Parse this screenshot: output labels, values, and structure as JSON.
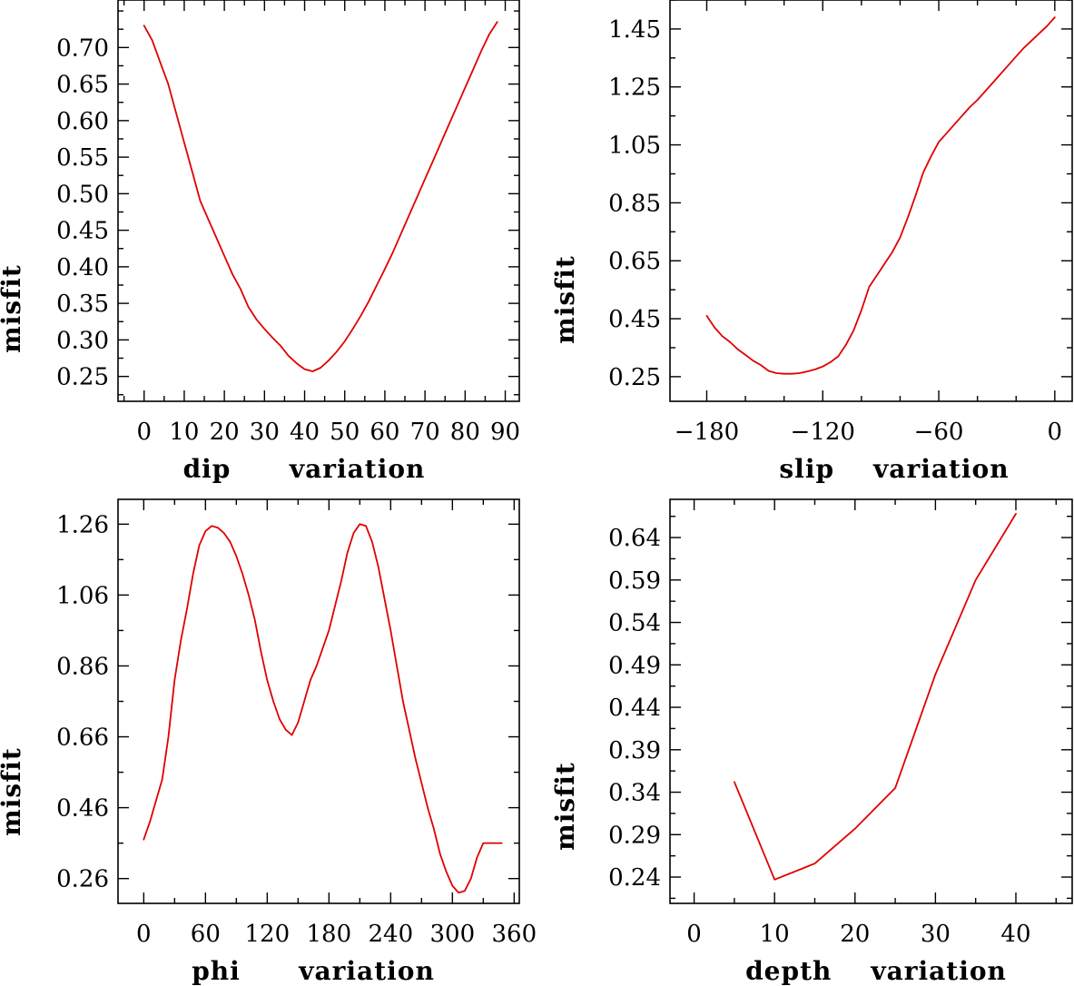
{
  "chart_data": [
    {
      "id": "dip",
      "type": "line",
      "title": "",
      "xlabel": "dip      variation",
      "ylabel": "misfit",
      "xlim": [
        -6.5,
        93.5
      ],
      "ylim": [
        0.216,
        0.765
      ],
      "xticks": [
        0,
        10,
        20,
        30,
        40,
        50,
        60,
        70,
        80,
        90
      ],
      "xtick_labels": [
        "0",
        "10",
        "20",
        "30",
        "40",
        "50",
        "60",
        "70",
        "80",
        "90"
      ],
      "xminor": 5,
      "yticks": [
        0.25,
        0.3,
        0.35,
        0.4,
        0.45,
        0.5,
        0.55,
        0.6,
        0.65,
        0.7
      ],
      "ytick_labels": [
        "0.25",
        "0.30",
        "0.35",
        "0.40",
        "0.45",
        "0.50",
        "0.55",
        "0.60",
        "0.65",
        "0.70"
      ],
      "yminor": 0.025,
      "grid": false,
      "series": [
        {
          "name": "misfit",
          "color": "#e00000",
          "x": [
            0,
            2,
            4,
            6,
            8,
            10,
            12,
            14,
            16,
            18,
            20,
            22,
            24,
            26,
            28,
            30,
            32,
            34,
            36,
            38,
            40,
            42,
            44,
            46,
            48,
            50,
            52,
            54,
            56,
            58,
            60,
            62,
            64,
            66,
            68,
            70,
            72,
            74,
            76,
            78,
            80,
            82,
            84,
            86,
            88
          ],
          "y": [
            0.73,
            0.71,
            0.68,
            0.65,
            0.61,
            0.57,
            0.53,
            0.49,
            0.465,
            0.44,
            0.415,
            0.39,
            0.37,
            0.345,
            0.328,
            0.315,
            0.303,
            0.292,
            0.278,
            0.268,
            0.26,
            0.257,
            0.262,
            0.272,
            0.284,
            0.298,
            0.315,
            0.333,
            0.353,
            0.375,
            0.397,
            0.42,
            0.445,
            0.47,
            0.495,
            0.52,
            0.545,
            0.57,
            0.595,
            0.62,
            0.645,
            0.67,
            0.695,
            0.718,
            0.735
          ]
        }
      ]
    },
    {
      "id": "slip",
      "type": "line",
      "title": "",
      "xlabel": "slip    variation",
      "ylabel": "misfit",
      "xlim": [
        -199,
        9
      ],
      "ylim": [
        0.165,
        1.55
      ],
      "xticks": [
        -180,
        -120,
        -60,
        0
      ],
      "xtick_labels": [
        "−180",
        "−120",
        "−60",
        "0"
      ],
      "xminor": 20,
      "yticks": [
        0.25,
        0.45,
        0.65,
        0.85,
        1.05,
        1.25,
        1.45
      ],
      "ytick_labels": [
        "0.25",
        "0.45",
        "0.65",
        "0.85",
        "1.05",
        "1.25",
        "1.45"
      ],
      "yminor": 0.1,
      "grid": false,
      "series": [
        {
          "name": "misfit",
          "color": "#e00000",
          "x": [
            -180,
            -176,
            -172,
            -168,
            -164,
            -160,
            -156,
            -152,
            -148,
            -144,
            -140,
            -136,
            -132,
            -128,
            -124,
            -120,
            -116,
            -112,
            -108,
            -104,
            -100,
            -96,
            -92,
            -88,
            -84,
            -80,
            -76,
            -72,
            -68,
            -64,
            -60,
            -56,
            -52,
            -48,
            -44,
            -40,
            -36,
            -32,
            -28,
            -24,
            -20,
            -16,
            -12,
            -8,
            -4,
            0
          ],
          "y": [
            0.46,
            0.42,
            0.39,
            0.37,
            0.345,
            0.325,
            0.305,
            0.29,
            0.27,
            0.262,
            0.26,
            0.26,
            0.262,
            0.268,
            0.275,
            0.285,
            0.3,
            0.32,
            0.36,
            0.41,
            0.48,
            0.56,
            0.6,
            0.64,
            0.68,
            0.73,
            0.8,
            0.875,
            0.955,
            1.01,
            1.06,
            1.09,
            1.12,
            1.15,
            1.18,
            1.205,
            1.235,
            1.265,
            1.295,
            1.325,
            1.355,
            1.385,
            1.41,
            1.435,
            1.46,
            1.49
          ]
        }
      ]
    },
    {
      "id": "phi",
      "type": "line",
      "title": "",
      "xlabel": "phi      variation",
      "ylabel": "misfit",
      "xlim": [
        -25,
        365
      ],
      "ylim": [
        0.19,
        1.33
      ],
      "xticks": [
        0,
        60,
        120,
        180,
        240,
        300,
        360
      ],
      "xtick_labels": [
        "0",
        "60",
        "120",
        "180",
        "240",
        "300",
        "360"
      ],
      "xminor": 30,
      "yticks": [
        0.26,
        0.46,
        0.66,
        0.86,
        1.06,
        1.26
      ],
      "ytick_labels": [
        "0.26",
        "0.46",
        "0.66",
        "0.86",
        "1.06",
        "1.26"
      ],
      "yminor": 0.1,
      "grid": false,
      "series": [
        {
          "name": "misfit",
          "color": "#e00000",
          "x": [
            0,
            6,
            12,
            18,
            24,
            30,
            36,
            42,
            48,
            54,
            60,
            66,
            72,
            78,
            84,
            90,
            96,
            102,
            108,
            114,
            120,
            126,
            132,
            138,
            144,
            150,
            156,
            162,
            168,
            174,
            180,
            186,
            192,
            198,
            204,
            210,
            216,
            222,
            228,
            234,
            240,
            246,
            252,
            258,
            264,
            270,
            276,
            282,
            288,
            294,
            300,
            306,
            312,
            318,
            324,
            330,
            336,
            342,
            348
          ],
          "y": [
            0.37,
            0.42,
            0.48,
            0.54,
            0.66,
            0.82,
            0.93,
            1.02,
            1.12,
            1.2,
            1.24,
            1.255,
            1.25,
            1.235,
            1.21,
            1.17,
            1.12,
            1.06,
            0.99,
            0.9,
            0.82,
            0.76,
            0.71,
            0.68,
            0.665,
            0.7,
            0.76,
            0.82,
            0.86,
            0.91,
            0.96,
            1.03,
            1.1,
            1.18,
            1.235,
            1.26,
            1.255,
            1.21,
            1.14,
            1.05,
            0.96,
            0.86,
            0.76,
            0.68,
            0.6,
            0.53,
            0.46,
            0.4,
            0.33,
            0.28,
            0.24,
            0.22,
            0.225,
            0.26,
            0.32,
            0.36,
            0.36,
            0.36,
            0.36
          ]
        }
      ]
    },
    {
      "id": "depth",
      "type": "line",
      "title": "",
      "xlabel": "depth    variation",
      "ylabel": "misfit",
      "xlim": [
        -3,
        47
      ],
      "ylim": [
        0.209,
        0.685
      ],
      "xticks": [
        0,
        10,
        20,
        30,
        40
      ],
      "xtick_labels": [
        "0",
        "10",
        "20",
        "30",
        "40"
      ],
      "xminor": 5,
      "yticks": [
        0.24,
        0.29,
        0.34,
        0.39,
        0.44,
        0.49,
        0.54,
        0.59,
        0.64
      ],
      "ytick_labels": [
        "0.24",
        "0.29",
        "0.34",
        "0.39",
        "0.44",
        "0.49",
        "0.54",
        "0.59",
        "0.64"
      ],
      "yminor": 0.025,
      "grid": false,
      "series": [
        {
          "name": "misfit",
          "color": "#e00000",
          "x": [
            5,
            10,
            15,
            20,
            25,
            30,
            35,
            40
          ],
          "y": [
            0.352,
            0.237,
            0.256,
            0.297,
            0.345,
            0.479,
            0.59,
            0.668
          ]
        }
      ]
    }
  ]
}
